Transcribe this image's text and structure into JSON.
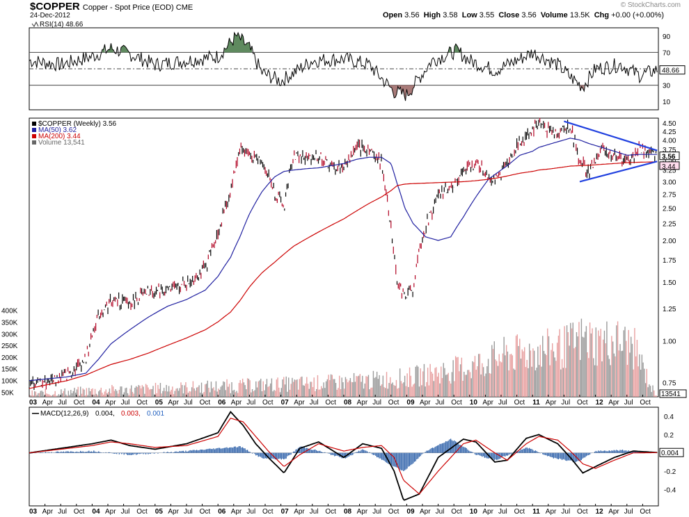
{
  "header": {
    "symbol": "$COPPER",
    "description": "Copper - Spot Price (EOD) CME",
    "date": "24-Dec-2012",
    "brand": "© StockCharts.com",
    "ohlc": {
      "open": "3.56",
      "high": "3.58",
      "low": "3.55",
      "close": "3.56",
      "volume": "13.5K",
      "chg": "+0.00 (+0.00%)"
    }
  },
  "chart_data": [
    {
      "panel": "rsi",
      "type": "line",
      "title": "RSI(14) 48.66",
      "current_label": "48.66",
      "y_ticks": [
        90,
        70,
        50,
        30,
        10
      ],
      "ylim": [
        0,
        100
      ],
      "reference_lines": [
        70,
        50,
        30
      ],
      "x": [
        2003.0,
        2003.5,
        2004.0,
        2004.3,
        2004.6,
        2005.0,
        2005.5,
        2006.0,
        2006.2,
        2006.3,
        2006.5,
        2006.7,
        2007.0,
        2007.5,
        2008.0,
        2008.4,
        2008.8,
        2009.0,
        2009.4,
        2009.8,
        2010.0,
        2010.4,
        2010.8,
        2011.0,
        2011.4,
        2011.6,
        2011.8,
        2012.0,
        2012.4,
        2012.7,
        2012.98
      ],
      "values": [
        60,
        55,
        65,
        75,
        68,
        55,
        60,
        65,
        82,
        90,
        75,
        45,
        35,
        60,
        62,
        55,
        22,
        18,
        60,
        72,
        60,
        48,
        62,
        70,
        55,
        40,
        28,
        50,
        55,
        42,
        48.66
      ],
      "colors": {
        "line": "#000000",
        "overbought_fill": "#5f8a5f",
        "oversold_fill": "#a97b79"
      }
    },
    {
      "panel": "price",
      "type": "line",
      "legend": [
        {
          "label": "$COPPER (Weekly) 3.56",
          "color": "#000000"
        },
        {
          "label": "MA(50) 3.62",
          "color": "#1f1fa0"
        },
        {
          "label": "MA(200) 3.44",
          "color": "#cc0000"
        },
        {
          "label": "Volume 13,541",
          "color": "#666666"
        }
      ],
      "y_ticks": [
        4.5,
        4.25,
        4.0,
        3.75,
        3.5,
        3.25,
        3.0,
        2.75,
        2.5,
        2.25,
        2.0,
        1.75,
        1.5,
        1.25,
        1.0,
        0.75
      ],
      "y_tick_labels": [
        "4.50",
        "4.25",
        "4.00",
        "3.75",
        "3.50",
        "3.25",
        "3.00",
        "2.75",
        "2.50",
        "2.25",
        "2.00",
        "1.75",
        "1.50",
        "1.25",
        "1.00",
        "0.75"
      ],
      "ylim": [
        0.68,
        4.65
      ],
      "log_scale": true,
      "last_price_labels": [
        "3.56",
        "3.44"
      ],
      "x": [
        2003.0,
        2003.3,
        2003.6,
        2003.9,
        2004.1,
        2004.3,
        2004.6,
        2004.9,
        2005.2,
        2005.5,
        2005.8,
        2006.0,
        2006.2,
        2006.35,
        2006.5,
        2006.7,
        2006.9,
        2007.05,
        2007.2,
        2007.4,
        2007.6,
        2007.8,
        2008.0,
        2008.2,
        2008.4,
        2008.6,
        2008.75,
        2008.85,
        2008.97,
        2009.1,
        2009.3,
        2009.5,
        2009.7,
        2009.9,
        2010.1,
        2010.3,
        2010.45,
        2010.6,
        2010.8,
        2011.0,
        2011.1,
        2011.3,
        2011.5,
        2011.6,
        2011.75,
        2011.9,
        2012.1,
        2012.3,
        2012.5,
        2012.7,
        2012.98
      ],
      "series": [
        {
          "name": "$COPPER",
          "values": [
            0.74,
            0.76,
            0.79,
            0.88,
            1.2,
            1.32,
            1.3,
            1.4,
            1.42,
            1.48,
            1.65,
            2.1,
            2.8,
            3.8,
            3.6,
            3.45,
            2.8,
            2.5,
            3.6,
            3.5,
            3.6,
            3.3,
            3.3,
            3.8,
            3.75,
            3.4,
            2.2,
            1.5,
            1.35,
            1.45,
            2.2,
            2.7,
            2.9,
            3.2,
            3.4,
            3.1,
            3.0,
            3.45,
            3.9,
            4.3,
            4.5,
            4.2,
            4.3,
            4.4,
            3.45,
            3.2,
            3.75,
            3.6,
            3.4,
            3.75,
            3.56
          ]
        },
        {
          "name": "MA(50)",
          "values": [
            0.76,
            0.77,
            0.78,
            0.8,
            0.88,
            0.98,
            1.08,
            1.18,
            1.27,
            1.33,
            1.42,
            1.56,
            1.78,
            2.05,
            2.4,
            2.8,
            3.1,
            3.22,
            3.25,
            3.28,
            3.3,
            3.35,
            3.4,
            3.5,
            3.55,
            3.55,
            3.4,
            2.95,
            2.5,
            2.25,
            2.05,
            2.0,
            2.05,
            2.35,
            2.7,
            3.05,
            3.2,
            3.35,
            3.6,
            3.7,
            3.8,
            3.9,
            4.0,
            4.05,
            4.0,
            3.9,
            3.8,
            3.7,
            3.6,
            3.62,
            3.62
          ]
        },
        {
          "name": "MA(200)",
          "values": [
            0.72,
            0.74,
            0.76,
            0.79,
            0.82,
            0.85,
            0.88,
            0.92,
            0.97,
            1.02,
            1.08,
            1.14,
            1.22,
            1.32,
            1.45,
            1.6,
            1.72,
            1.82,
            1.92,
            2.02,
            2.12,
            2.22,
            2.32,
            2.45,
            2.58,
            2.7,
            2.82,
            2.92,
            2.95,
            2.96,
            2.97,
            2.98,
            2.99,
            3.0,
            3.02,
            3.05,
            3.08,
            3.12,
            3.18,
            3.22,
            3.25,
            3.28,
            3.32,
            3.34,
            3.35,
            3.36,
            3.38,
            3.4,
            3.42,
            3.43,
            3.44
          ]
        }
      ],
      "trendlines": [
        {
          "from": [
            2011.5,
            4.55
          ],
          "to": [
            2012.98,
            3.72
          ]
        },
        {
          "from": [
            2011.75,
            3.0
          ],
          "to": [
            2012.98,
            3.45
          ]
        }
      ],
      "volume": {
        "y_tick_labels": [
          "400K",
          "350K",
          "300K",
          "250K",
          "200K",
          "150K",
          "100K",
          "50K"
        ],
        "y_ticks": [
          400000,
          350000,
          300000,
          250000,
          200000,
          150000,
          100000,
          50000
        ],
        "ylim": [
          30000,
          420000
        ],
        "last_label": "13541",
        "x": [
          2003.0,
          2004.0,
          2005.0,
          2006.0,
          2007.0,
          2008.0,
          2009.0,
          2010.0,
          2010.5,
          2011.0,
          2011.5,
          2011.8,
          2012.0,
          2012.3,
          2012.6,
          2012.98
        ],
        "values": [
          45000,
          60000,
          70000,
          80000,
          90000,
          100000,
          120000,
          170000,
          220000,
          240000,
          260000,
          300000,
          280000,
          290000,
          260000,
          13541
        ],
        "colors": {
          "up": "#9a9a9a",
          "down": "#e8a0a0"
        }
      }
    },
    {
      "panel": "macd",
      "type": "line",
      "title": "MACD(12,26,9)",
      "legend_values": [
        "0.004",
        "0.003",
        "0.001"
      ],
      "legend_colors": [
        "#000000",
        "#cc0000",
        "#1f5fbf"
      ],
      "current_label": "0.004",
      "y_ticks": [
        0.4,
        0.2,
        0.0,
        -0.2,
        -0.4
      ],
      "y_tick_labels": [
        "0.4",
        "0.2",
        "",
        "-0.2",
        "-0.4"
      ],
      "ylim": [
        -0.58,
        0.5
      ],
      "x": [
        2003.0,
        2003.5,
        2004.0,
        2004.3,
        2004.6,
        2005.0,
        2005.5,
        2006.0,
        2006.2,
        2006.4,
        2006.6,
        2006.8,
        2007.05,
        2007.3,
        2007.6,
        2008.0,
        2008.3,
        2008.6,
        2008.8,
        2008.95,
        2009.2,
        2009.5,
        2009.9,
        2010.1,
        2010.4,
        2010.6,
        2010.9,
        2011.1,
        2011.4,
        2011.6,
        2011.8,
        2012.0,
        2012.3,
        2012.6,
        2012.98
      ],
      "series": [
        {
          "name": "MACD",
          "values": [
            0.0,
            0.05,
            0.1,
            0.14,
            0.08,
            0.04,
            0.1,
            0.22,
            0.45,
            0.3,
            0.1,
            -0.05,
            -0.22,
            0.05,
            0.12,
            -0.05,
            0.1,
            0.05,
            -0.2,
            -0.52,
            -0.45,
            -0.05,
            0.15,
            0.12,
            -0.1,
            -0.08,
            0.16,
            0.2,
            0.1,
            -0.05,
            -0.22,
            -0.15,
            -0.05,
            0.02,
            0.004
          ]
        },
        {
          "name": "Signal",
          "values": [
            0.0,
            0.04,
            0.08,
            0.12,
            0.1,
            0.06,
            0.08,
            0.18,
            0.38,
            0.34,
            0.18,
            0.02,
            -0.15,
            -0.02,
            0.1,
            0.02,
            0.06,
            0.08,
            -0.05,
            -0.3,
            -0.45,
            -0.2,
            0.1,
            0.14,
            0.0,
            -0.08,
            0.1,
            0.18,
            0.14,
            0.02,
            -0.12,
            -0.17,
            -0.08,
            0.0,
            0.003
          ]
        }
      ],
      "histogram": {
        "x": [
          2003.0,
          2004.0,
          2004.6,
          2005.5,
          2006.0,
          2006.35,
          2006.7,
          2007.05,
          2007.3,
          2007.6,
          2008.0,
          2008.3,
          2008.8,
          2008.95,
          2009.3,
          2009.7,
          2010.1,
          2010.4,
          2010.9,
          2011.3,
          2011.7,
          2012.0,
          2012.4,
          2012.98
        ],
        "values": [
          0.0,
          0.02,
          -0.02,
          0.02,
          0.05,
          0.07,
          -0.06,
          -0.07,
          0.07,
          0.02,
          -0.06,
          0.04,
          -0.15,
          -0.2,
          0.02,
          0.15,
          -0.02,
          -0.08,
          0.06,
          -0.05,
          -0.1,
          0.02,
          0.03,
          0.001
        ],
        "color": "#2b5fa8"
      }
    }
  ],
  "x_axis": {
    "labels": [
      "03",
      "Apr",
      "Jul",
      "Oct",
      "04",
      "Apr",
      "Jul",
      "Oct",
      "05",
      "Apr",
      "Jul",
      "Oct",
      "06",
      "Apr",
      "Jul",
      "Oct",
      "07",
      "Apr",
      "Jul",
      "Oct",
      "08",
      "Apr",
      "Jul",
      "Oct",
      "09",
      "Apr",
      "Jul",
      "Oct",
      "10",
      "Apr",
      "Jul",
      "Oct",
      "11",
      "Apr",
      "Jul",
      "Oct",
      "12",
      "Apr",
      "Jul",
      "Oct"
    ],
    "xlim": [
      2003.0,
      2013.0
    ]
  }
}
